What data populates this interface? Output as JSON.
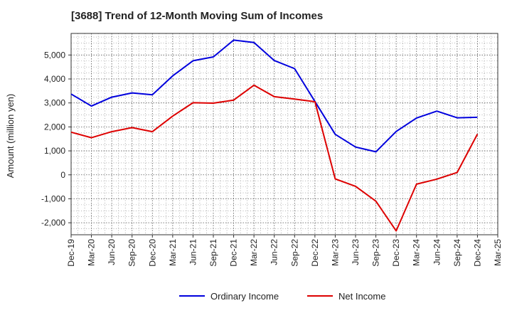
{
  "chart_data": {
    "type": "line",
    "title": "[3688]  Trend of 12-Month Moving Sum of Incomes",
    "xlabel": "",
    "ylabel": "Amount (million yen)",
    "ylim": [
      -2500,
      5900
    ],
    "yticks": [
      -2000,
      -1000,
      0,
      1000,
      2000,
      3000,
      4000,
      5000
    ],
    "ytick_labels": [
      "-2,000",
      "-1,000",
      "0",
      "1,000",
      "2,000",
      "3,000",
      "4,000",
      "5,000"
    ],
    "x_tick_labels": [
      "Dec-19",
      "Mar-20",
      "Jun-20",
      "Sep-20",
      "Dec-20",
      "Mar-21",
      "Jun-21",
      "Sep-21",
      "Dec-21",
      "Mar-22",
      "Jun-22",
      "Sep-22",
      "Dec-22",
      "Mar-23",
      "Jun-23",
      "Sep-23",
      "Dec-23",
      "Mar-24",
      "Jun-24",
      "Sep-24",
      "Dec-24",
      "Mar-25"
    ],
    "grid": true,
    "legend_position": "bottom-center",
    "series": [
      {
        "name": "Ordinary Income",
        "color": "#0000dd",
        "values": [
          3370,
          2870,
          3240,
          3420,
          3340,
          4130,
          4760,
          4920,
          5620,
          5520,
          4770,
          4430,
          3060,
          1690,
          1160,
          960,
          1810,
          2370,
          2660,
          2380,
          2400
        ]
      },
      {
        "name": "Net Income",
        "color": "#dd0000",
        "values": [
          1780,
          1550,
          1800,
          1970,
          1800,
          2450,
          3010,
          2990,
          3120,
          3740,
          3260,
          3160,
          3050,
          -170,
          -480,
          -1100,
          -2340,
          -390,
          -180,
          100,
          1700
        ]
      }
    ]
  }
}
